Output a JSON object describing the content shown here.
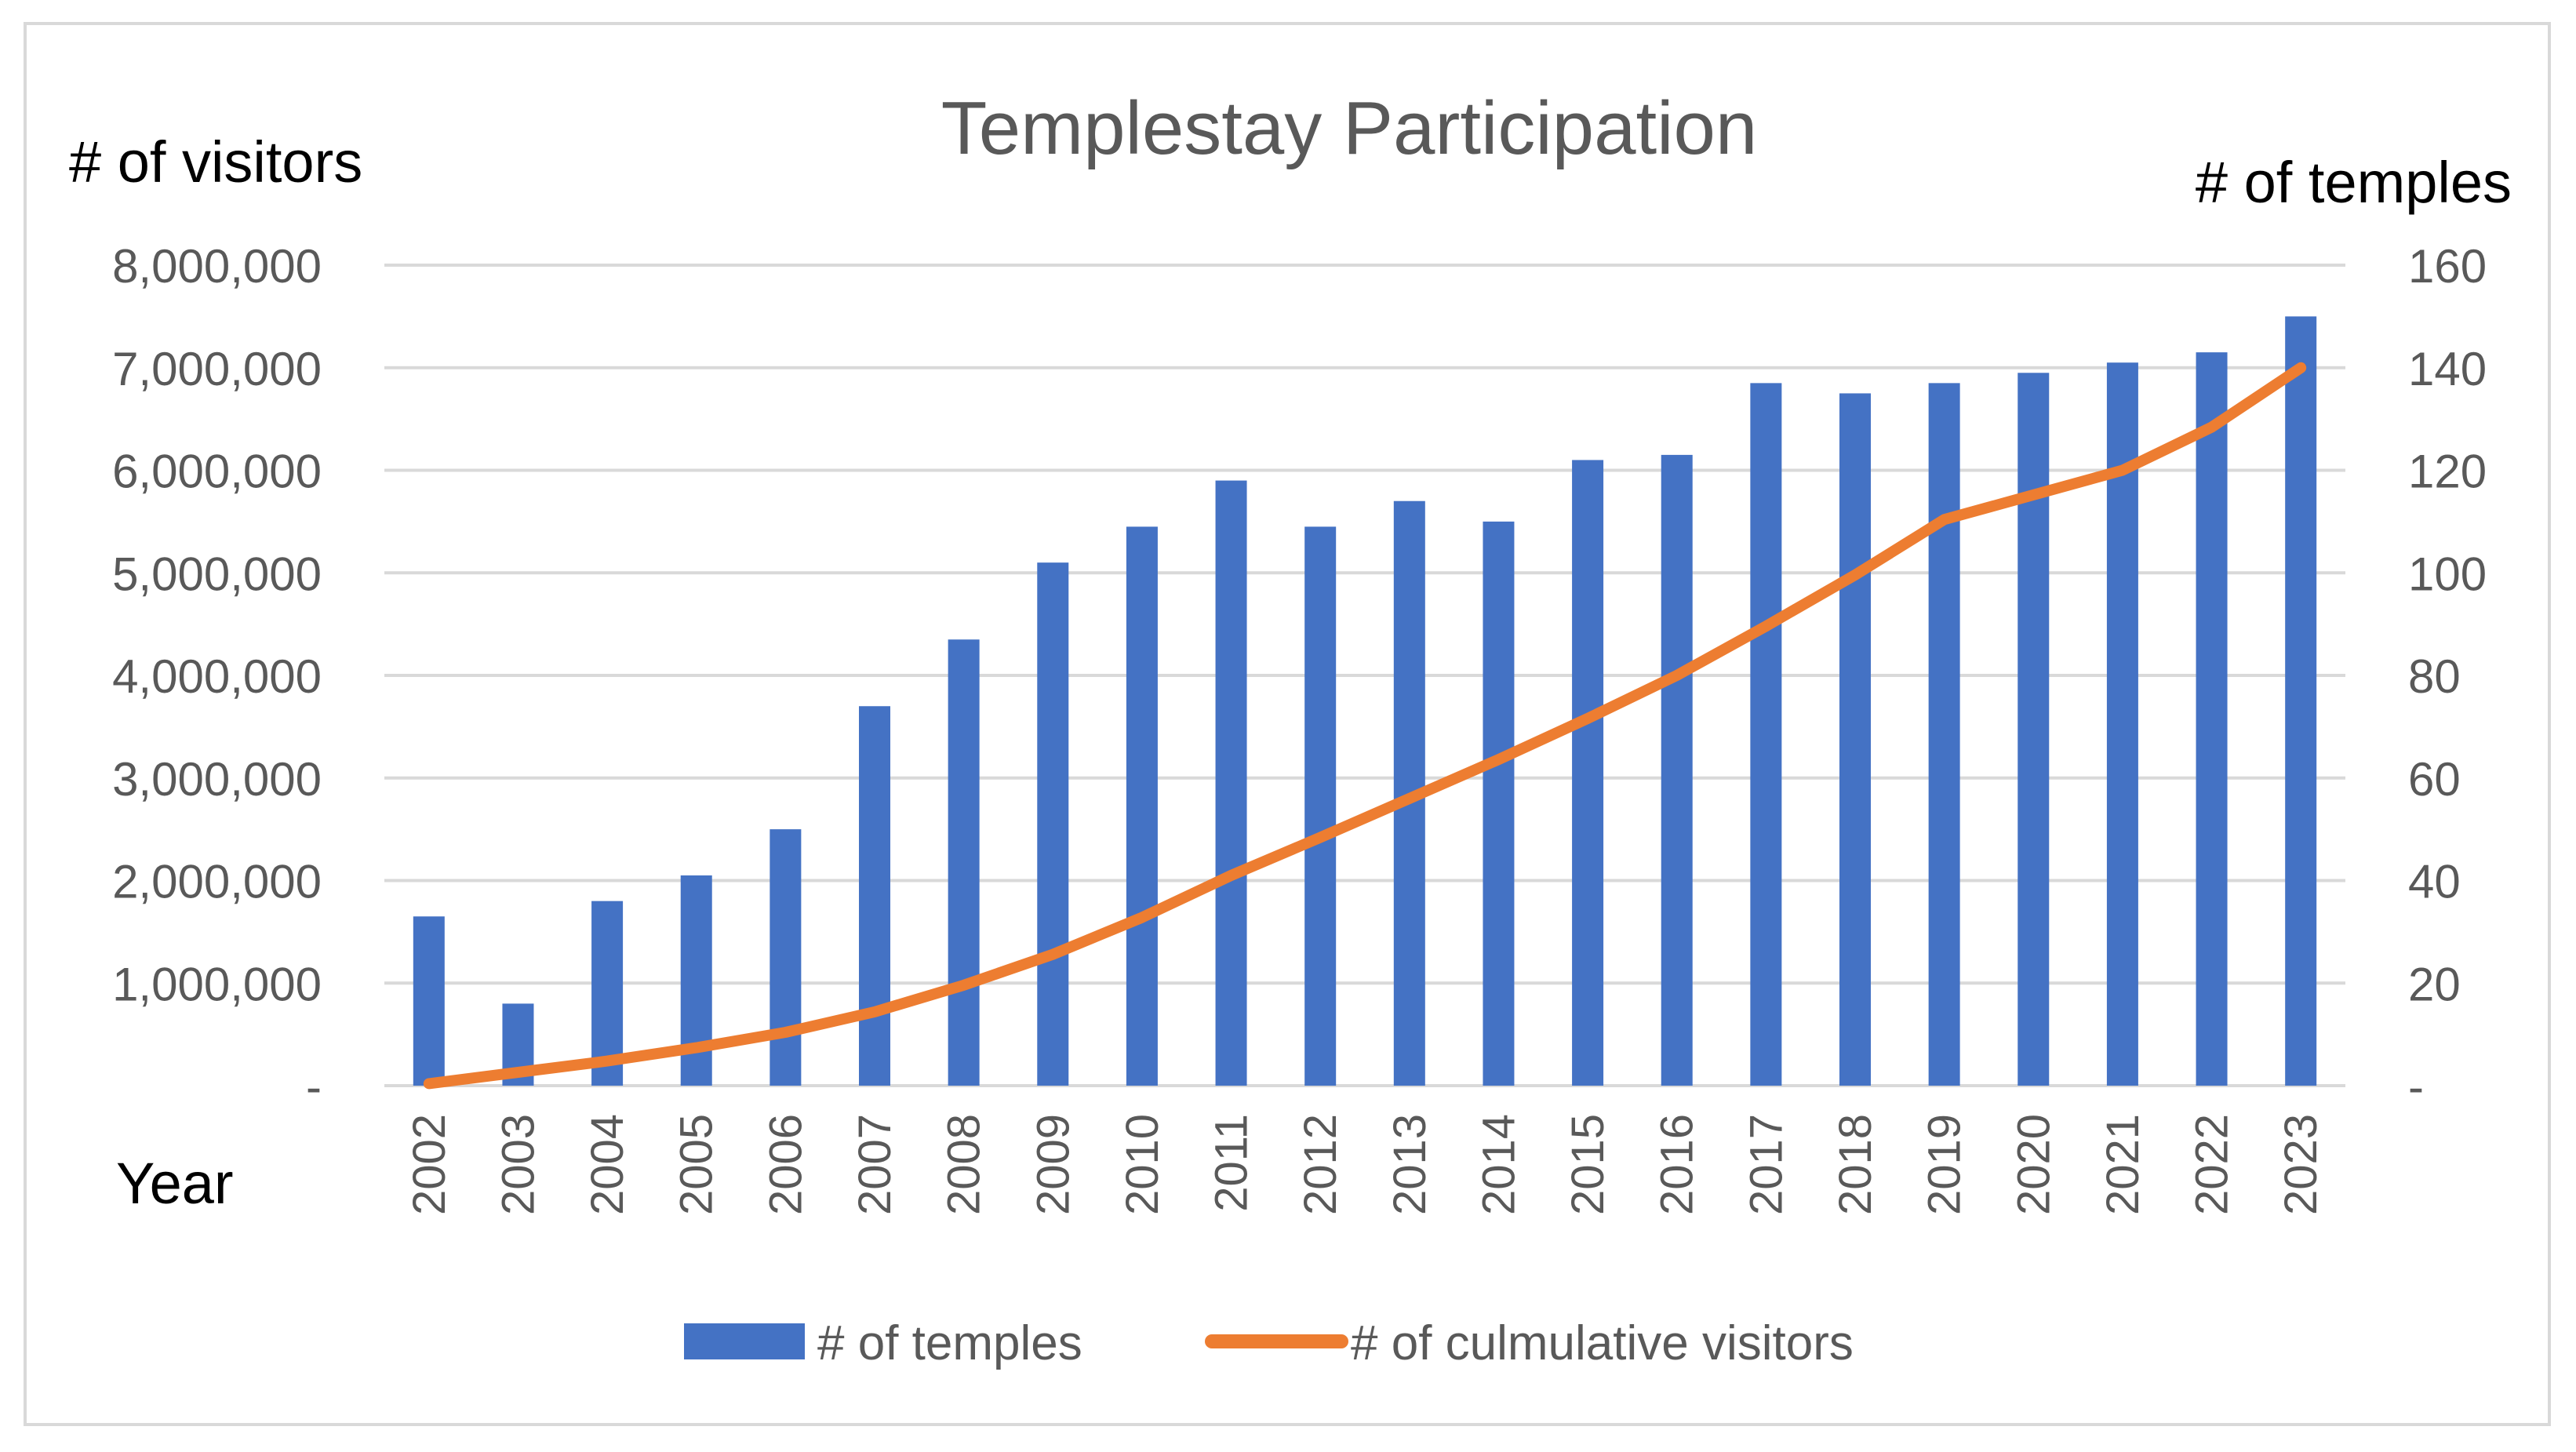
{
  "chart_data": {
    "type": "bar+line",
    "title": "Templestay Participation",
    "y_left_label": "# of visitors",
    "y_right_label": "# of temples",
    "xlabel": "Year",
    "categories": [
      "2002",
      "2003",
      "2004",
      "2005",
      "2006",
      "2007",
      "2008",
      "2009",
      "2010",
      "2011",
      "2012",
      "2013",
      "2014",
      "2015",
      "2016",
      "2017",
      "2018",
      "2019",
      "2020",
      "2021",
      "2022",
      "2023"
    ],
    "y_left_ticks": [
      "-",
      "1,000,000",
      "2,000,000",
      "3,000,000",
      "4,000,000",
      "5,000,000",
      "6,000,000",
      "7,000,000",
      "8,000,000"
    ],
    "y_right_ticks": [
      "-",
      "20",
      "40",
      "60",
      "80",
      "100",
      "120",
      "140",
      "160"
    ],
    "y_left_range": [
      0,
      8000000
    ],
    "y_right_range": [
      0,
      160
    ],
    "grid": true,
    "series": [
      {
        "name": "# of temples",
        "kind": "bar",
        "axis": "right",
        "color": "#4472c4",
        "values": [
          33,
          16,
          36,
          41,
          50,
          74,
          87,
          102,
          109,
          118,
          109,
          114,
          110,
          122,
          123,
          137,
          135,
          137,
          139,
          141,
          143,
          150
        ]
      },
      {
        "name": "# of culmulative visitors",
        "kind": "line",
        "axis": "left",
        "color": "#ed7d31",
        "values": [
          20000,
          130000,
          240000,
          370000,
          520000,
          720000,
          980000,
          1280000,
          1640000,
          2050000,
          2420000,
          2800000,
          3180000,
          3580000,
          4000000,
          4480000,
          4980000,
          5520000,
          5760000,
          6000000,
          6420000,
          7000000
        ]
      }
    ],
    "legend_position": "bottom"
  }
}
